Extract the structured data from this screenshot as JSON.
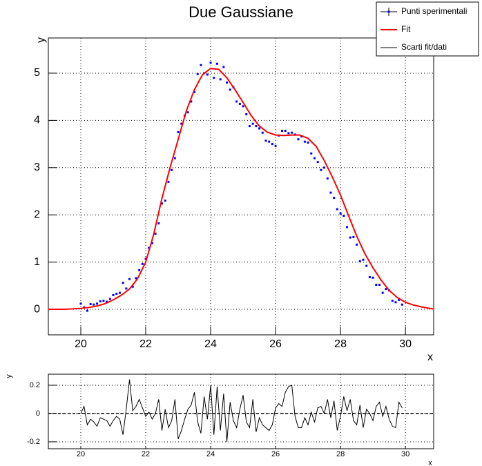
{
  "chart_data": [
    {
      "type": "scatter",
      "title": "Due Gaussiane",
      "x_label": "x",
      "y_label": "y",
      "xlim": [
        19.0,
        30.87
      ],
      "ylim": [
        -0.54,
        5.745
      ],
      "xticks": [
        20,
        22,
        24,
        26,
        28,
        30
      ],
      "yticks": [
        0,
        1,
        2,
        3,
        4,
        5
      ],
      "grid": true,
      "legend": "top-right",
      "series": [
        {
          "name": "Punti sperimentali",
          "type": "scatter",
          "color": "#0000ff",
          "x": [
            20.0,
            20.1,
            20.2,
            20.3,
            20.4,
            20.5,
            20.6,
            20.7,
            20.8,
            20.9,
            21.0,
            21.1,
            21.2,
            21.3,
            21.4,
            21.5,
            21.6,
            21.7,
            21.8,
            21.9,
            22.0,
            22.1,
            22.2,
            22.3,
            22.4,
            22.5,
            22.6,
            22.7,
            22.8,
            22.9,
            23.0,
            23.1,
            23.2,
            23.3,
            23.4,
            23.5,
            23.6,
            23.7,
            23.8,
            23.9,
            24.0,
            24.1,
            24.2,
            24.3,
            24.4,
            24.5,
            24.6,
            24.7,
            24.8,
            24.9,
            25.0,
            25.1,
            25.2,
            25.3,
            25.4,
            25.5,
            25.6,
            25.7,
            25.8,
            25.9,
            26.0,
            26.1,
            26.2,
            26.3,
            26.4,
            26.5,
            26.6,
            26.7,
            26.8,
            26.9,
            27.0,
            27.1,
            27.2,
            27.3,
            27.4,
            27.5,
            27.6,
            27.7,
            27.8,
            27.9,
            28.0,
            28.1,
            28.2,
            28.3,
            28.4,
            28.5,
            28.6,
            28.7,
            28.8,
            28.9,
            29.0,
            29.1,
            29.2,
            29.3,
            29.4,
            29.5,
            29.6,
            29.7,
            29.8,
            29.9
          ],
          "values": [
            0.12,
            0.04,
            -0.03,
            0.11,
            0.1,
            0.12,
            0.17,
            0.18,
            0.16,
            0.22,
            0.3,
            0.33,
            0.35,
            0.56,
            0.44,
            0.64,
            0.48,
            0.66,
            0.83,
            0.96,
            1.07,
            1.3,
            1.4,
            1.6,
            1.82,
            2.24,
            2.3,
            2.7,
            2.95,
            3.2,
            3.75,
            3.93,
            4.1,
            4.17,
            4.4,
            4.6,
            4.98,
            5.17,
            5.0,
            4.97,
            5.22,
            4.9,
            5.2,
            4.87,
            5.13,
            4.8,
            4.65,
            4.7,
            4.4,
            4.35,
            4.3,
            4.13,
            3.88,
            3.93,
            3.88,
            3.83,
            3.74,
            3.57,
            3.55,
            3.5,
            3.46,
            3.68,
            3.78,
            3.78,
            3.73,
            3.74,
            3.7,
            3.6,
            3.66,
            3.55,
            3.53,
            3.3,
            3.2,
            3.12,
            2.95,
            3.0,
            2.77,
            2.47,
            2.36,
            2.12,
            2.03,
            1.98,
            1.74,
            1.52,
            1.53,
            1.37,
            1.02,
            1.05,
            0.92,
            0.68,
            0.67,
            0.52,
            0.52,
            0.35,
            0.43,
            0.4,
            0.18,
            0.15,
            0.2,
            0.1
          ]
        },
        {
          "name": "Fit",
          "type": "line",
          "color": "#ff0000",
          "x": [
            19.0,
            19.5,
            20.0,
            20.25,
            20.5,
            20.75,
            21.0,
            21.25,
            21.5,
            21.75,
            22.0,
            22.25,
            22.5,
            22.75,
            23.0,
            23.25,
            23.5,
            23.75,
            24.0,
            24.25,
            24.5,
            24.75,
            25.0,
            25.25,
            25.5,
            25.75,
            26.0,
            26.25,
            26.5,
            26.75,
            27.0,
            27.25,
            27.5,
            27.75,
            28.0,
            28.25,
            28.5,
            28.75,
            29.0,
            29.25,
            29.5,
            29.75,
            30.0,
            30.25,
            30.5,
            30.75,
            30.85
          ],
          "values": [
            0,
            0,
            0.02,
            0.04,
            0.07,
            0.12,
            0.2,
            0.3,
            0.43,
            0.65,
            1.0,
            1.6,
            2.35,
            3.0,
            3.6,
            4.2,
            4.65,
            4.97,
            5.1,
            5.08,
            4.9,
            4.65,
            4.38,
            4.1,
            3.88,
            3.75,
            3.69,
            3.68,
            3.69,
            3.69,
            3.62,
            3.45,
            3.15,
            2.8,
            2.42,
            1.98,
            1.55,
            1.18,
            0.88,
            0.62,
            0.4,
            0.25,
            0.15,
            0.09,
            0.05,
            0.02,
            0.01
          ]
        }
      ]
    },
    {
      "type": "line",
      "x_label": "x",
      "y_label": "y",
      "xlim": [
        19.0,
        30.87
      ],
      "ylim": [
        -0.249,
        0.278
      ],
      "xticks": [
        20,
        22,
        24,
        26,
        28,
        30
      ],
      "yticks": [
        -0.2,
        0,
        0.2
      ],
      "grid": true,
      "series": [
        {
          "name": "Scarti fit/dati",
          "type": "line",
          "color": "#000000",
          "x": [
            20.0,
            20.1,
            20.2,
            20.3,
            20.4,
            20.5,
            20.6,
            20.7,
            20.8,
            20.9,
            21.0,
            21.1,
            21.2,
            21.3,
            21.4,
            21.5,
            21.6,
            21.7,
            21.8,
            21.9,
            22.0,
            22.1,
            22.2,
            22.3,
            22.4,
            22.5,
            22.6,
            22.7,
            22.8,
            22.9,
            23.0,
            23.1,
            23.2,
            23.3,
            23.4,
            23.5,
            23.6,
            23.7,
            23.8,
            23.9,
            24.0,
            24.1,
            24.2,
            24.3,
            24.4,
            24.5,
            24.6,
            24.7,
            24.8,
            24.9,
            25.0,
            25.1,
            25.2,
            25.3,
            25.4,
            25.5,
            25.6,
            25.7,
            25.8,
            25.9,
            26.0,
            26.1,
            26.2,
            26.3,
            26.4,
            26.5,
            26.6,
            26.7,
            26.8,
            26.9,
            27.0,
            27.1,
            27.2,
            27.3,
            27.4,
            27.5,
            27.6,
            27.7,
            27.8,
            27.9,
            28.0,
            28.1,
            28.2,
            28.3,
            28.4,
            28.5,
            28.6,
            28.7,
            28.8,
            28.9,
            29.0,
            29.1,
            29.2,
            29.3,
            29.4,
            29.5,
            29.6,
            29.7,
            29.8,
            29.9
          ],
          "values": [
            0.0,
            0.05,
            -0.08,
            -0.04,
            -0.06,
            -0.09,
            -0.03,
            -0.04,
            -0.05,
            -0.09,
            -0.05,
            -0.02,
            -0.04,
            -0.15,
            0.03,
            0.24,
            0.02,
            0.05,
            0.1,
            0.04,
            -0.02,
            0.01,
            -0.04,
            0.0,
            0.1,
            -0.12,
            0.03,
            -0.1,
            -0.05,
            0.1,
            -0.18,
            -0.12,
            -0.04,
            0.03,
            0.06,
            0.15,
            -0.06,
            -0.14,
            0.12,
            -0.04,
            0.2,
            -0.15,
            0.19,
            -0.12,
            0.14,
            -0.2,
            0.08,
            -0.05,
            -0.1,
            0.03,
            0.13,
            -0.06,
            -0.1,
            0.1,
            -0.13,
            -0.03,
            -0.08,
            -0.1,
            -0.12,
            -0.08,
            0.04,
            0.07,
            0.05,
            0.15,
            0.19,
            0.2,
            -0.02,
            -0.1,
            -0.1,
            -0.03,
            -0.08,
            0.01,
            -0.06,
            0.04,
            0.05,
            0.0,
            0.1,
            -0.03,
            0.09,
            -0.12,
            -0.02,
            0.12,
            0.02,
            0.1,
            -0.05,
            -0.08,
            0.06,
            -0.1,
            0.03,
            0.0,
            -0.05,
            0.05,
            0.08,
            -0.02,
            0.05,
            -0.04,
            -0.09,
            -0.1,
            0.08,
            0.04
          ]
        }
      ]
    }
  ]
}
